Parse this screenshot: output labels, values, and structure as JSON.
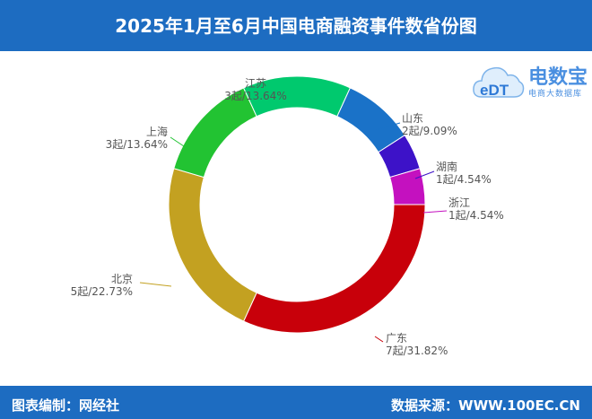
{
  "header": {
    "title": "2025年1月至6月中国电商融资事件数省份图"
  },
  "footer": {
    "editor": "图表编制：网经社",
    "source": "数据来源：WWW.100EC.CN"
  },
  "logo": {
    "name": "电数宝",
    "subtitle": "电商大数据库",
    "mark": "eDT",
    "icon": "cloud-logo-icon"
  },
  "chart_data": {
    "type": "pie",
    "donut": true,
    "title": "",
    "categories": [
      "广东",
      "北京",
      "上海",
      "江苏",
      "山东",
      "湖南",
      "浙江"
    ],
    "values": [
      7,
      5,
      3,
      3,
      2,
      1,
      1
    ],
    "labels": [
      "7起/31.82%",
      "5起/22.73%",
      "3起/13.64%",
      "3起/13.64%",
      "2起/9.09%",
      "1起/4.54%",
      "1起/4.54%"
    ],
    "colors": [
      "#c8000a",
      "#c3a121",
      "#22c332",
      "#00c96e",
      "#1a72c8",
      "#3d12c8",
      "#c411bf"
    ]
  }
}
